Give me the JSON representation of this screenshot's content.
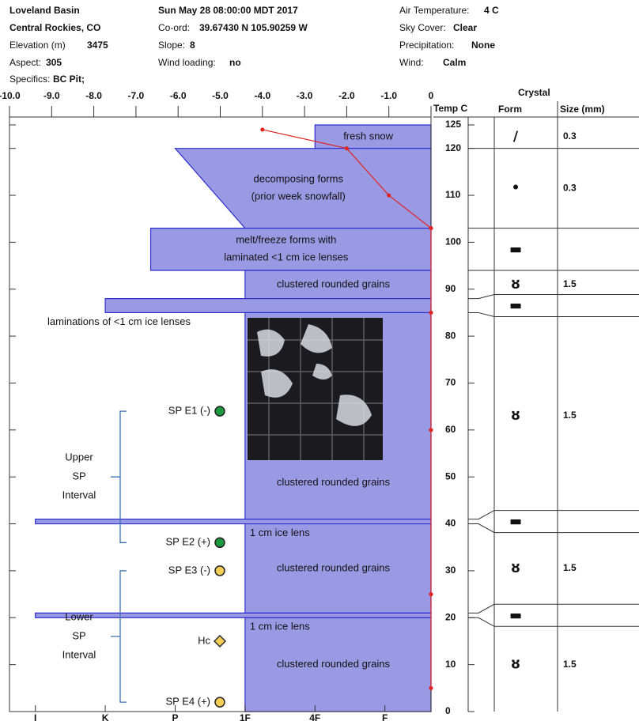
{
  "header": {
    "site": "Loveland Basin",
    "region": "Central Rockies, CO",
    "elevation_label": "Elevation (m)",
    "elevation": 3475,
    "aspect_label": "Aspect:",
    "aspect": 305,
    "specifics_label": "Specifics:",
    "specifics": "BC Pit;",
    "datetime": "Sun May 28 08:00:00 MDT 2017",
    "coord_label": "Co-ord:",
    "coord": "39.67430 N 105.90259 W",
    "slope_label": "Slope:",
    "slope": 8,
    "wind_loading_label": "Wind loading:",
    "wind_loading": "no",
    "air_temp_label": "Air Temperature:",
    "air_temp": "4 C",
    "sky_label": "Sky Cover:",
    "sky": "Clear",
    "precip_label": "Precipitation:",
    "precip": "None",
    "wind_label": "Wind:",
    "wind": "Calm"
  },
  "chart_data": {
    "type": "snowprofile",
    "xlabel": "Temp C",
    "xlim": [
      -10,
      0
    ],
    "xticks": [
      {
        "value": -10,
        "label": "-10.0"
      },
      {
        "value": -9,
        "label": "-9.0"
      },
      {
        "value": -8,
        "label": "-8.0"
      },
      {
        "value": -7,
        "label": "-7.0"
      },
      {
        "value": -6,
        "label": "-6.0"
      },
      {
        "value": -5,
        "label": "-5.0"
      },
      {
        "value": -4,
        "label": "-4.0"
      },
      {
        "value": -3,
        "label": "-3.0"
      },
      {
        "value": -2,
        "label": "-2.0"
      },
      {
        "value": -1,
        "label": "-1.0"
      },
      0
    ],
    "ylim": [
      0,
      125
    ],
    "yticks": [
      0,
      10,
      20,
      30,
      40,
      50,
      60,
      70,
      80,
      90,
      100,
      110,
      120,
      125
    ],
    "hardness_lim": [
      6.37,
      0.34
    ],
    "hardness_ticks": [
      {
        "value": 6,
        "label": "I"
      },
      {
        "value": 5,
        "label": "K"
      },
      {
        "value": 4,
        "label": "P"
      },
      {
        "value": 3,
        "label": "1F"
      },
      {
        "value": 2,
        "label": "4F"
      },
      {
        "value": 1,
        "label": "F"
      }
    ],
    "layer_color": "#9a9ae4",
    "layer_edge": "#2f2fd0",
    "crystal_header": "Crystal",
    "form_header": "Form",
    "size_header": "Size (mm)",
    "layers": [
      {
        "top": 125,
        "bottom": 120,
        "hardness_top": 2,
        "hardness_bottom": 2,
        "label": [
          "fresh snow"
        ],
        "form": "/",
        "size": 0.3
      },
      {
        "top": 120,
        "bottom": 103,
        "hardness_top": 4,
        "hardness_bottom": 3,
        "label": [
          "decomposing forms",
          "(prior week snowfall)"
        ],
        "form": "•",
        "size": 0.3
      },
      {
        "top": 103,
        "bottom": 94,
        "hardness_top": 4.35,
        "hardness_bottom": 4.35,
        "label": [
          "melt/freeze forms with",
          "laminated <1 cm ice lenses"
        ],
        "form": "▬"
      },
      {
        "top": 94,
        "bottom": 88,
        "hardness_top": 3,
        "hardness_bottom": 3,
        "label": [
          "clustered  rounded grains"
        ],
        "form": "ȣ",
        "size": 1.5
      },
      {
        "top": 88,
        "bottom": 85,
        "hardness_top": 5,
        "hardness_bottom": 5,
        "label": [
          "laminations of <1 cm ice lenses"
        ],
        "form": "▬"
      },
      {
        "top": 85,
        "bottom": 41,
        "hardness_top": 3,
        "hardness_bottom": 3,
        "label": [
          "clustered  rounded grains"
        ],
        "form": "ȣ",
        "size": 1.5
      },
      {
        "top": 41,
        "bottom": 40,
        "hardness_top": 6,
        "hardness_bottom": 6,
        "label": [
          "1 cm ice lens"
        ],
        "form": "▬"
      },
      {
        "top": 40,
        "bottom": 21,
        "hardness_top": 3,
        "hardness_bottom": 3,
        "label": [
          "clustered  rounded grains"
        ],
        "form": "ȣ",
        "size": 1.5
      },
      {
        "top": 21,
        "bottom": 20,
        "hardness_top": 6,
        "hardness_bottom": 6,
        "label": [
          "1 cm ice lens"
        ],
        "form": "▬"
      },
      {
        "top": 20,
        "bottom": 0,
        "hardness_top": 3,
        "hardness_bottom": 3,
        "label": [
          "clustered  rounded grains"
        ],
        "form": "ȣ",
        "size": 1.5
      }
    ],
    "temperature": {
      "color": "#e02424",
      "heights": [
        124,
        120,
        110,
        103,
        85,
        60,
        25,
        5
      ],
      "values": [
        -4,
        -2,
        -1,
        0,
        0,
        0,
        0,
        0
      ]
    },
    "tests": [
      {
        "label": "SP E1 (-)",
        "height": 64,
        "color": "#1a9a3c",
        "shape": "circle"
      },
      {
        "label": "SP E2 (+)",
        "height": 36,
        "color": "#1a9a3c",
        "shape": "circle"
      },
      {
        "label": "SP E3 (-)",
        "height": 30,
        "color": "#f6cd55",
        "shape": "circle"
      },
      {
        "label": "Hc",
        "height": 15,
        "color": "#f6cd55",
        "shape": "diamond"
      },
      {
        "label": "SP E4 (+)",
        "height": 2,
        "color": "#f6cd55",
        "shape": "circle"
      }
    ],
    "intervals": [
      {
        "label": [
          "Upper",
          "SP",
          "Interval"
        ],
        "top": 64,
        "bottom": 36
      },
      {
        "label": [
          "Lower",
          "SP",
          "Interval"
        ],
        "top": 30,
        "bottom": 2
      }
    ]
  }
}
